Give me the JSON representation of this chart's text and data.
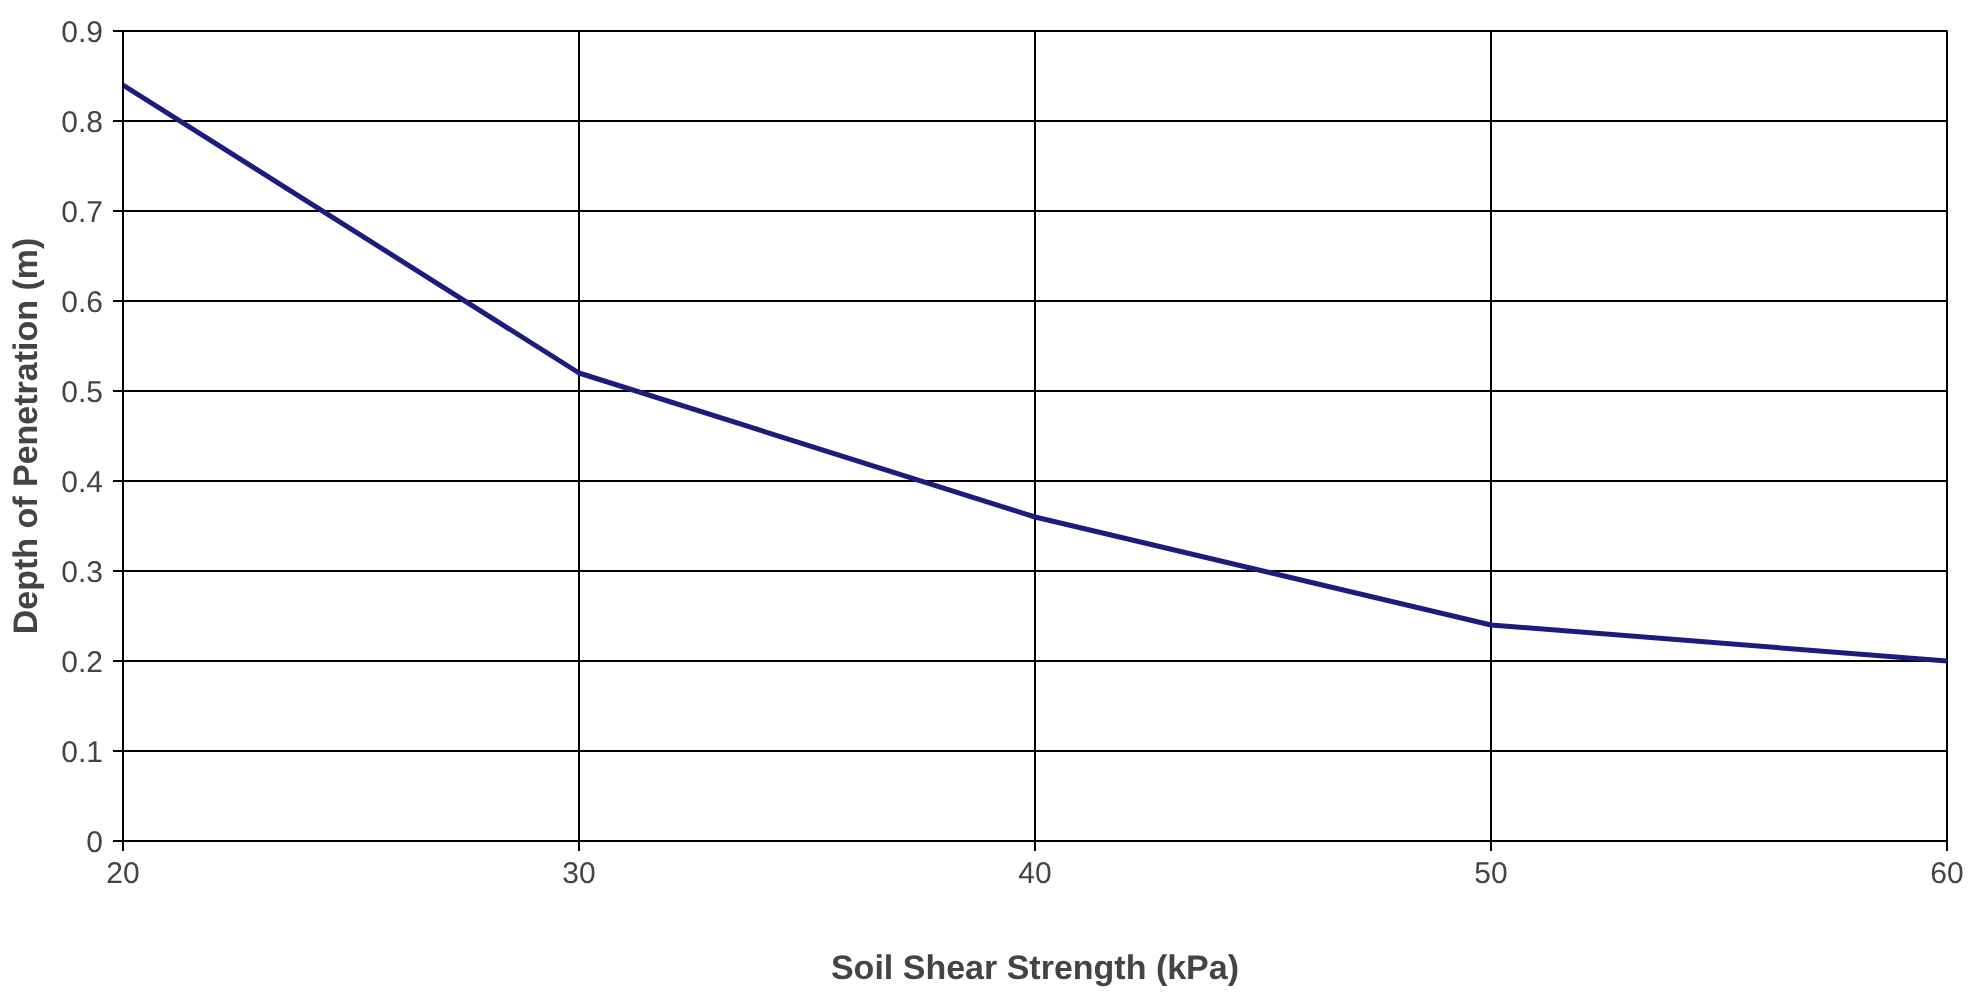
{
  "chart_data": {
    "type": "line",
    "xlabel": "Soil Shear Strength (kPa)",
    "ylabel": "Depth of Penetration (m)",
    "x": [
      20,
      30,
      40,
      50,
      60
    ],
    "series": [
      {
        "color": "#1c1c7c",
        "values": [
          0.84,
          0.52,
          0.36,
          0.24,
          0.2
        ]
      }
    ],
    "xlim": [
      20,
      60
    ],
    "ylim": [
      0,
      0.9
    ],
    "xticks": [
      20,
      30,
      40,
      50,
      60
    ],
    "yticks": [
      0,
      0.1,
      0.2,
      0.3,
      0.4,
      0.5,
      0.6,
      0.7,
      0.8,
      0.9
    ],
    "grid": true,
    "line_style": "solid"
  }
}
